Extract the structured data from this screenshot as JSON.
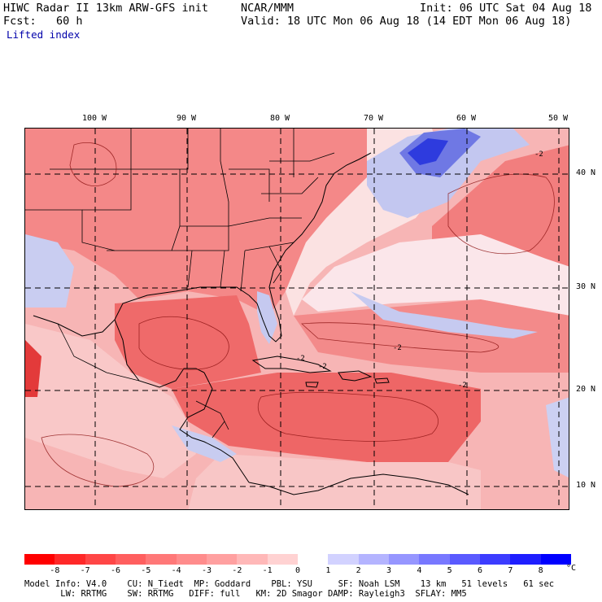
{
  "header": {
    "model": "HIWC Radar II 13km ARW-GFS init",
    "org": "NCAR/MMM",
    "init": "Init: 06 UTC Sat 04 Aug 18",
    "fcst": "Fcst:   60 h",
    "valid": "Valid: 18 UTC Mon 06 Aug 18 (14 EDT Mon 06 Aug 18)",
    "field": "Lifted index"
  },
  "map": {
    "lon_labels": [
      "100 W",
      "90 W",
      "80 W",
      "70 W",
      "60 W",
      "50 W"
    ],
    "lat_labels": [
      "40 N",
      "30 N",
      "20 N",
      "10 N"
    ],
    "contour_labels": [
      "-2",
      "-2",
      "-2",
      "-2",
      "-2"
    ],
    "colors": {
      "strong_neg": "#e63a3a",
      "neg": "#f27a7a",
      "weak_neg": "#f7b0b0",
      "neutral": "#fbe4e4",
      "weak_pos": "#c8ccf2",
      "pos": "#8f95e8",
      "strong_pos": "#2a36e0",
      "coast": "#000000"
    }
  },
  "colorbar": {
    "ticks": [
      "-8",
      "-7",
      "-6",
      "-5",
      "-4",
      "-3",
      "-2",
      "-1",
      "0",
      "1",
      "2",
      "3",
      "4",
      "5",
      "6",
      "7",
      "8"
    ],
    "unit": "°C",
    "colors": [
      "#ff0000",
      "#ff2828",
      "#ff4646",
      "#ff5f5f",
      "#ff7878",
      "#ff8c8c",
      "#ffa0a0",
      "#ffb8b8",
      "#ffd2d2",
      "#ffffff",
      "#d2d2ff",
      "#b4b4ff",
      "#9696ff",
      "#7878ff",
      "#5a5aff",
      "#3c3cff",
      "#1e1eff",
      "#0000ff"
    ]
  },
  "footer": {
    "line1": "Model Info: V4.0    CU: N_Tiedt  MP: Goddard    PBL: YSU     SF: Noah LSM    13 km   51 levels   61 sec",
    "line2": "       LW: RRTMG    SW: RRTMG   DIFF: full   KM: 2D Smagor DAMP: Rayleigh3  SFLAY: MM5"
  }
}
